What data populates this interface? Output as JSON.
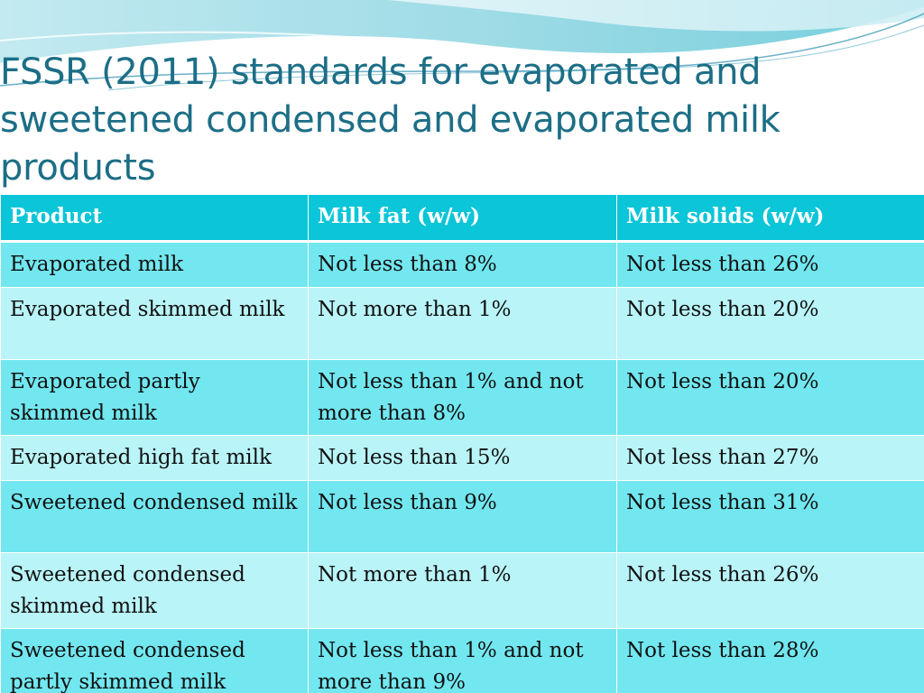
{
  "title": "FSSR (2011) standards for evaporated and sweetened condensed and evaporated milk products",
  "colors": {
    "title": "#1c6e86",
    "header_bg": "#0bc5d8",
    "row_dark": "#72e7f0",
    "row_light": "#b9f4f8",
    "wave": "#7fd3df"
  },
  "table": {
    "headers": [
      "Product",
      "Milk fat (w/w)",
      "Milk solids (w/w)"
    ],
    "rows": [
      [
        "Evaporated milk",
        "Not less than 8%",
        "Not less than 26%"
      ],
      [
        "Evaporated skimmed milk",
        "Not more than 1%",
        "Not less than 20%"
      ],
      [
        "Evaporated partly skimmed milk",
        "Not less than 1% and not more than 8%",
        "Not less than 20%"
      ],
      [
        "Evaporated high fat milk",
        "Not less than 15%",
        "Not less than 27%"
      ],
      [
        "Sweetened condensed milk",
        "Not less than 9%",
        "Not less than 31%"
      ],
      [
        "Sweetened condensed skimmed milk",
        "Not more than 1%",
        "Not less than 26%"
      ],
      [
        "Sweetened condensed partly skimmed milk",
        "Not less than 1% and not more than 9%",
        "Not less than 28%"
      ]
    ]
  }
}
